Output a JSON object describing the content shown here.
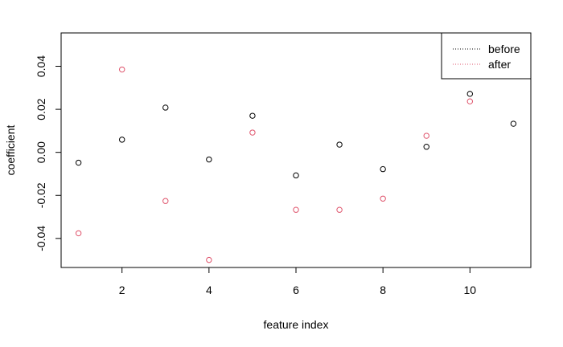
{
  "chart_data": {
    "type": "scatter",
    "title": "",
    "xlabel": "feature index",
    "ylabel": "coefficient",
    "xlim": [
      0.6,
      11.4
    ],
    "ylim": [
      -0.0535,
      0.0555
    ],
    "xticks": [
      2,
      4,
      6,
      8,
      10
    ],
    "yticks": [
      -0.04,
      -0.02,
      0.0,
      0.02,
      0.04
    ],
    "ytick_labels": [
      "-0.04",
      "-0.02",
      "0.00",
      "0.02",
      "0.04"
    ],
    "grid": false,
    "legend_position": "top-right",
    "series": [
      {
        "name": "before",
        "color": "#000000",
        "marker": "open-circle",
        "x": [
          1,
          2,
          3,
          4,
          5,
          6,
          7,
          8,
          9,
          10,
          11
        ],
        "y": [
          -0.0048,
          0.0059,
          0.0208,
          -0.0033,
          0.017,
          -0.0107,
          0.0036,
          -0.0078,
          0.0026,
          0.0272,
          0.0133
        ]
      },
      {
        "name": "after",
        "color": "#DF536B",
        "marker": "open-circle",
        "x": [
          1,
          2,
          3,
          4,
          5,
          6,
          7,
          8,
          9,
          10
        ],
        "y": [
          -0.0376,
          0.0385,
          -0.0226,
          -0.05,
          0.0092,
          -0.0267,
          -0.0267,
          -0.0215,
          0.0077,
          0.0237
        ]
      }
    ]
  }
}
